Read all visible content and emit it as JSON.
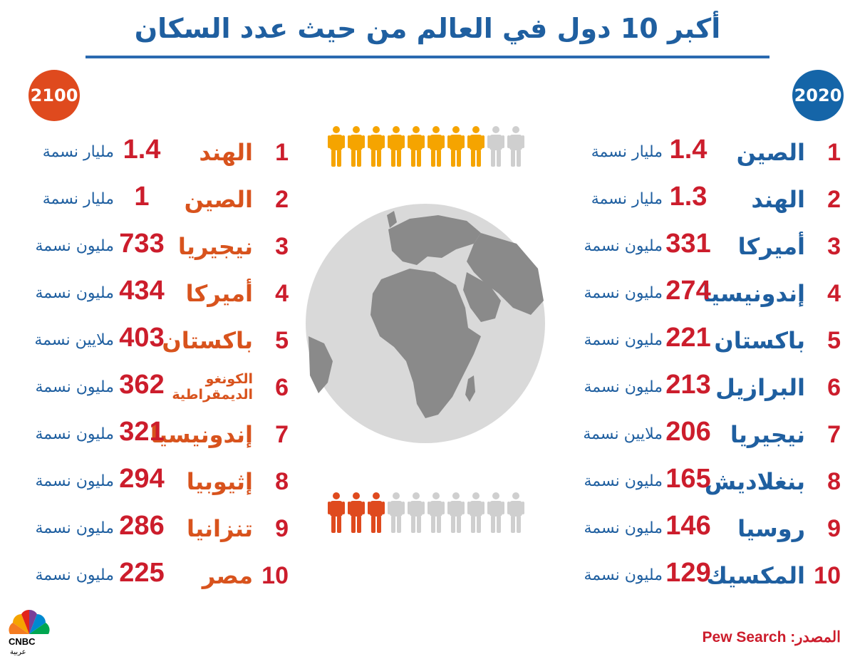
{
  "title": "أكبر 10 دول في العالم من حيث عدد السكان",
  "year_2020": "2020",
  "year_2100": "2100",
  "colors": {
    "blue": "#1565a8",
    "orange": "#df4a1e",
    "red": "#cc1d2c",
    "yellow": "#f5a400",
    "gray": "#cfcfcf"
  },
  "rows_2020": [
    {
      "rank": "1",
      "country": "الصين",
      "number": "1.4",
      "unit": "مليار نسمة"
    },
    {
      "rank": "2",
      "country": "الهند",
      "number": "1.3",
      "unit": "مليار نسمة"
    },
    {
      "rank": "3",
      "country": "أميركا",
      "number": "331",
      "unit": "مليون نسمة"
    },
    {
      "rank": "4",
      "country": "إندونيسيا",
      "number": "274",
      "unit": "مليون نسمة"
    },
    {
      "rank": "5",
      "country": "باكستان",
      "number": "221",
      "unit": "مليون نسمة"
    },
    {
      "rank": "6",
      "country": "البرازيل",
      "number": "213",
      "unit": "مليون نسمة"
    },
    {
      "rank": "7",
      "country": "نيجيريا",
      "number": "206",
      "unit": "ملايين نسمة"
    },
    {
      "rank": "8",
      "country": "بنغلاديش",
      "number": "165",
      "unit": "مليون نسمة"
    },
    {
      "rank": "9",
      "country": "روسيا",
      "number": "146",
      "unit": "مليون نسمة"
    },
    {
      "rank": "10",
      "country": "المكسيك",
      "number": "129",
      "unit": "مليون نسمة"
    }
  ],
  "rows_2100": [
    {
      "rank": "1",
      "country": "الهند",
      "number": "1.4",
      "unit": "مليار نسمة"
    },
    {
      "rank": "2",
      "country": "الصين",
      "number": "1",
      "unit": "مليار نسمة"
    },
    {
      "rank": "3",
      "country": "نيجيريا",
      "number": "733",
      "unit": "مليون نسمة"
    },
    {
      "rank": "4",
      "country": "أميركا",
      "number": "434",
      "unit": "مليون نسمة"
    },
    {
      "rank": "5",
      "country": "باكستان",
      "number": "403",
      "unit": "ملايين نسمة"
    },
    {
      "rank": "6",
      "country": "الكونغو الديمقراطية",
      "number": "362",
      "unit": "مليون نسمة"
    },
    {
      "rank": "7",
      "country": "إندونيسيا",
      "number": "321",
      "unit": "مليون نسمة"
    },
    {
      "rank": "8",
      "country": "إثيوبيا",
      "number": "294",
      "unit": "مليون نسمة"
    },
    {
      "rank": "9",
      "country": "تنزانيا",
      "number": "286",
      "unit": "مليون نسمة"
    },
    {
      "rank": "10",
      "country": "مصر",
      "number": "225",
      "unit": "مليون نسمة"
    }
  ],
  "people_top": {
    "highlighted": 8,
    "total": 10
  },
  "people_bottom": {
    "highlighted": 3,
    "total": 10
  },
  "source": "المصدر: Pew Search",
  "logo": {
    "brand": "CNBC",
    "subtitle": "عربية"
  }
}
